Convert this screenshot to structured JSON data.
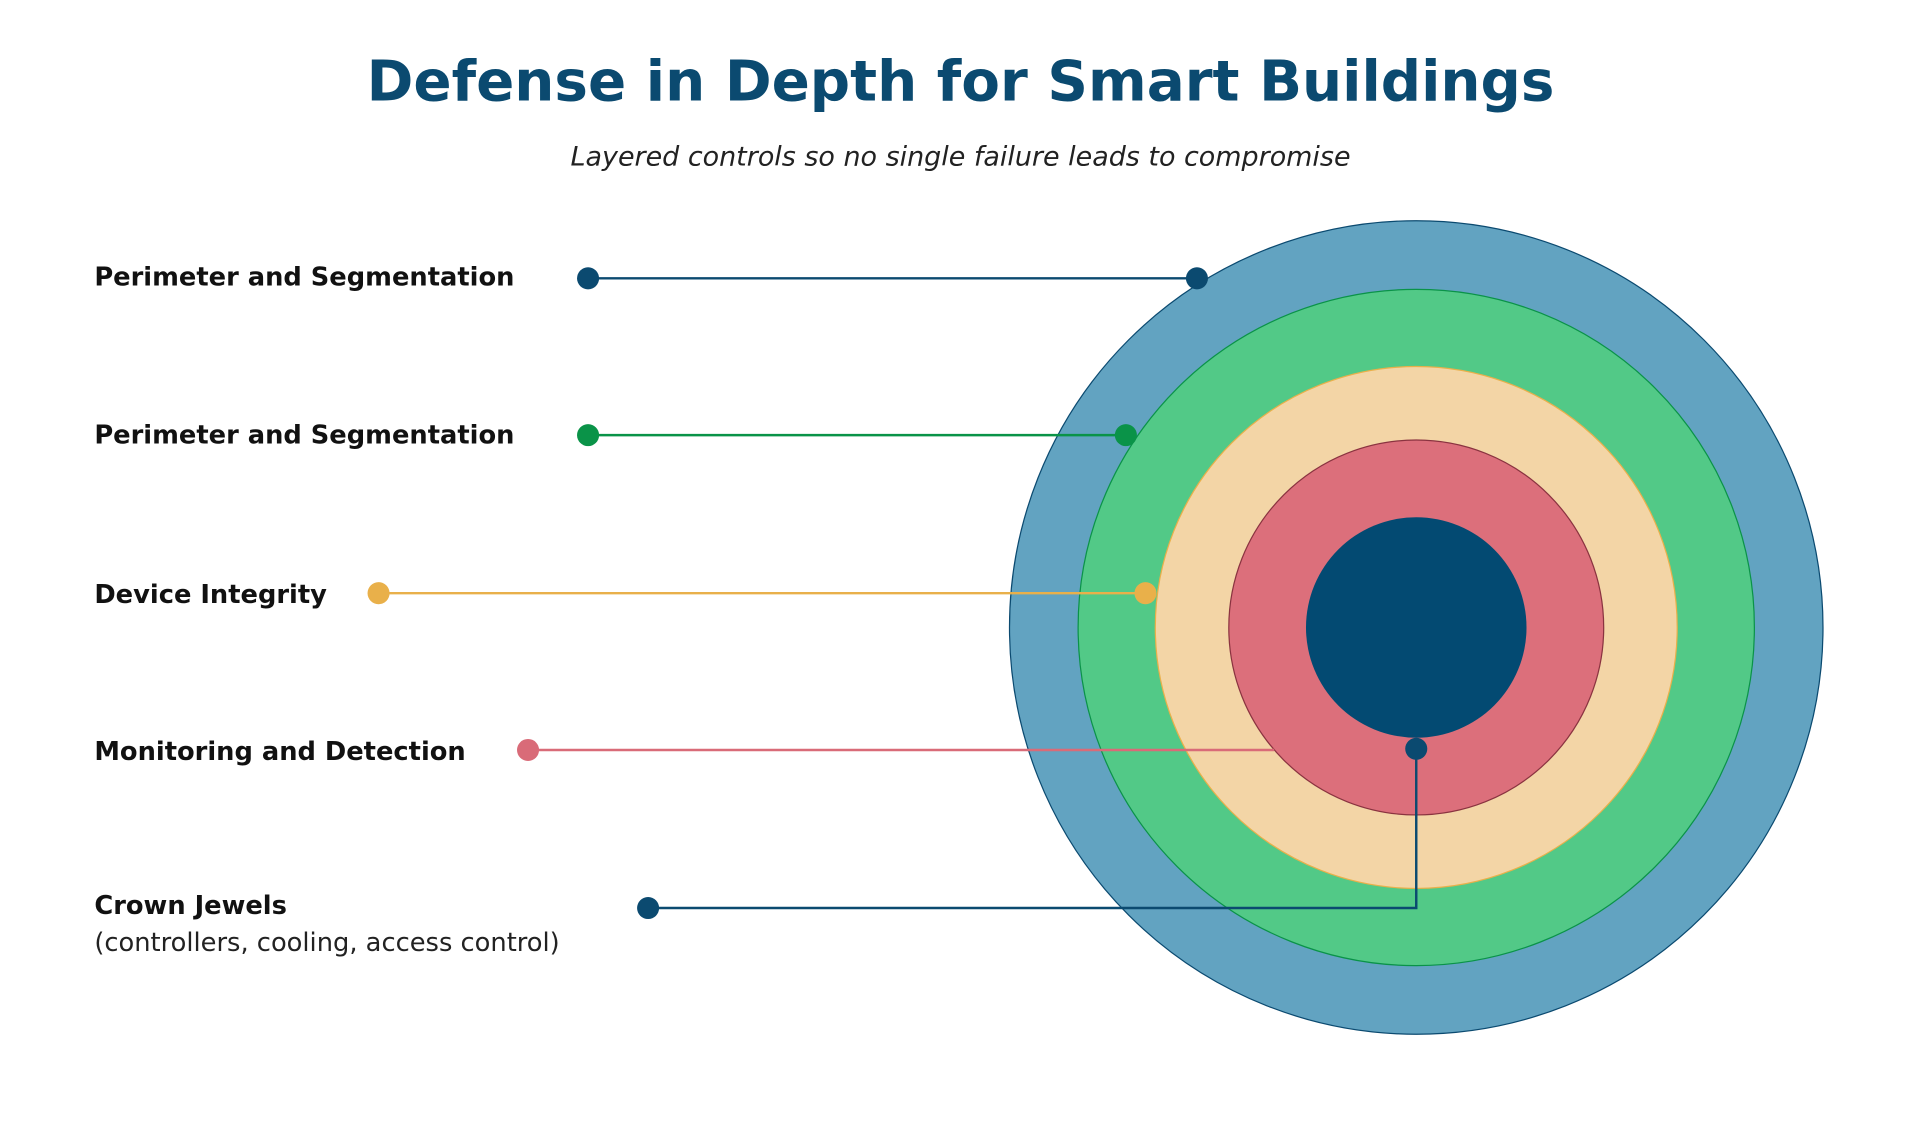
{
  "header": {
    "title": "Defense in Depth for Smart Buildings",
    "subtitle": "Layered controls so no single failure leads to compromise"
  },
  "layers": [
    {
      "label": "Perimeter and Segmentation"
    },
    {
      "label": "Perimeter and Segmentation"
    },
    {
      "label": "Device Integrity"
    },
    {
      "label": "Monitoring and Detection"
    },
    {
      "label": "Crown Jewels",
      "note": "(controllers, cooling, access control)"
    }
  ]
}
